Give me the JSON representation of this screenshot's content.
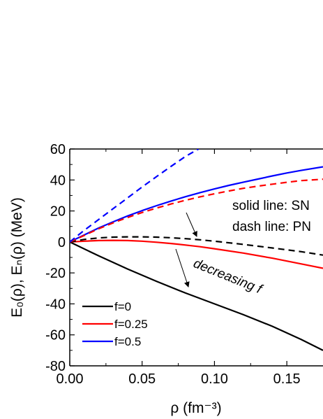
{
  "chart_data": {
    "type": "line",
    "xlabel": "ρ (fm⁻³)",
    "ylabel": "E₀(ρ), Eₙ(ρ) (MeV)",
    "xlim": [
      0.0,
      0.175
    ],
    "ylim": [
      -80,
      60
    ],
    "x_ticks": [
      0.0,
      0.05,
      0.1,
      0.15
    ],
    "x_tick_labels": [
      "0.00",
      "0.05",
      "0.10",
      "0.15"
    ],
    "y_ticks": [
      -80,
      -60,
      -40,
      -20,
      0,
      20,
      40,
      60
    ],
    "y_tick_labels": [
      "-80",
      "-60",
      "-40",
      "-20",
      "0",
      "20",
      "40",
      "60"
    ],
    "colors": {
      "f0": "#000000",
      "f025": "#ff0000",
      "f05": "#0000ff"
    },
    "series": [
      {
        "name": "f=0",
        "style": "solid",
        "color_key": "f0",
        "x": [
          0.0,
          0.02,
          0.04,
          0.06,
          0.08,
          0.1,
          0.12,
          0.14,
          0.16,
          0.175
        ],
        "y": [
          0,
          -9,
          -17.5,
          -25.5,
          -33,
          -40,
          -47,
          -54.5,
          -63,
          -70
        ]
      },
      {
        "name": "f=0.25",
        "style": "solid",
        "color_key": "f025",
        "x": [
          0.0,
          0.01,
          0.02,
          0.03,
          0.04,
          0.05,
          0.06,
          0.07,
          0.08,
          0.09,
          0.1,
          0.12,
          0.14,
          0.16,
          0.175
        ],
        "y": [
          0,
          0.5,
          0.9,
          1.0,
          0.9,
          0.5,
          -0.2,
          -1.0,
          -2.0,
          -3.1,
          -4.4,
          -7.2,
          -10.5,
          -14.2,
          -17
        ]
      },
      {
        "name": "f=0.5",
        "style": "solid",
        "color_key": "f05",
        "x": [
          0.0,
          0.01,
          0.02,
          0.03,
          0.04,
          0.05,
          0.06,
          0.07,
          0.08,
          0.09,
          0.1,
          0.11,
          0.12,
          0.13,
          0.14,
          0.15,
          0.16,
          0.175
        ],
        "y": [
          0,
          4.5,
          9,
          13,
          16.8,
          20.2,
          23.4,
          26.4,
          29.2,
          31.8,
          34.2,
          36.5,
          38.6,
          40.6,
          42.6,
          44.5,
          46.2,
          48.5
        ]
      },
      {
        "style": "dashed",
        "color_key": "f0",
        "x": [
          0.0,
          0.01,
          0.02,
          0.03,
          0.04,
          0.05,
          0.06,
          0.07,
          0.08,
          0.09,
          0.1,
          0.12,
          0.14,
          0.16,
          0.175
        ],
        "y": [
          0,
          1.6,
          2.6,
          3.1,
          3.3,
          3.3,
          3.1,
          2.7,
          2.1,
          1.4,
          0.5,
          -1.6,
          -3.9,
          -6.3,
          -8.5
        ]
      },
      {
        "style": "dashed",
        "color_key": "f025",
        "x": [
          0.0,
          0.01,
          0.02,
          0.03,
          0.04,
          0.05,
          0.06,
          0.07,
          0.08,
          0.09,
          0.1,
          0.11,
          0.12,
          0.13,
          0.14,
          0.15,
          0.16,
          0.175
        ],
        "y": [
          0,
          4.2,
          8.5,
          12.3,
          15.8,
          19.0,
          21.9,
          24.5,
          26.9,
          29.1,
          31.1,
          32.9,
          34.6,
          36.0,
          37.3,
          38.5,
          39.6,
          40.5
        ]
      },
      {
        "style": "dashed",
        "color_key": "f05",
        "x": [
          0.0,
          0.01,
          0.02,
          0.03,
          0.04,
          0.05,
          0.06,
          0.07,
          0.08,
          0.089
        ],
        "y": [
          0,
          7.5,
          14.5,
          21.5,
          28.5,
          35.5,
          42.2,
          48.8,
          55.2,
          60
        ]
      }
    ],
    "legend": {
      "placement": "bottom-left",
      "entries": [
        {
          "label": "f=0",
          "color_key": "f0"
        },
        {
          "label": "f=0.25",
          "color_key": "f025"
        },
        {
          "label": "f=0.5",
          "color_key": "f05"
        }
      ]
    },
    "annotations": {
      "solid_note": "solid line: SN",
      "dash_note": "dash line: PN",
      "decreasing": "decreasing f"
    }
  }
}
